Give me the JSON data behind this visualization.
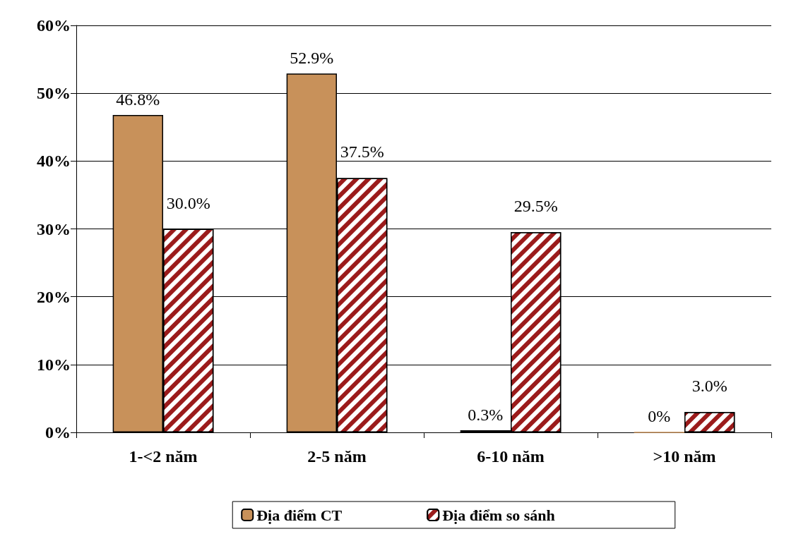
{
  "chart_data": {
    "type": "bar",
    "categories": [
      "1-<2 năm",
      "2-5 năm",
      "6-10 năm",
      ">10 năm"
    ],
    "series": [
      {
        "name": "Địa điểm CT",
        "color": "#c8915a",
        "values": [
          46.8,
          52.9,
          0.3,
          0
        ],
        "value_labels": [
          "46.8%",
          "52.9%",
          "0.3%",
          "0%"
        ]
      },
      {
        "name": "Địa điểm so sánh",
        "color": "#9b1b1b",
        "values": [
          30.0,
          37.5,
          29.5,
          3.0
        ],
        "value_labels": [
          "30.0%",
          "37.5%",
          "29.5%",
          "3.0%"
        ]
      }
    ],
    "ylim": [
      0,
      60
    ],
    "yticks": [
      {
        "value": 0,
        "label": "0%"
      },
      {
        "value": 10,
        "label": "10%"
      },
      {
        "value": 20,
        "label": "20%"
      },
      {
        "value": 30,
        "label": "30%"
      },
      {
        "value": 40,
        "label": "40%"
      },
      {
        "value": 50,
        "label": "50%"
      },
      {
        "value": 60,
        "label": "60%"
      }
    ],
    "grid": "y",
    "legend": "bottom"
  }
}
